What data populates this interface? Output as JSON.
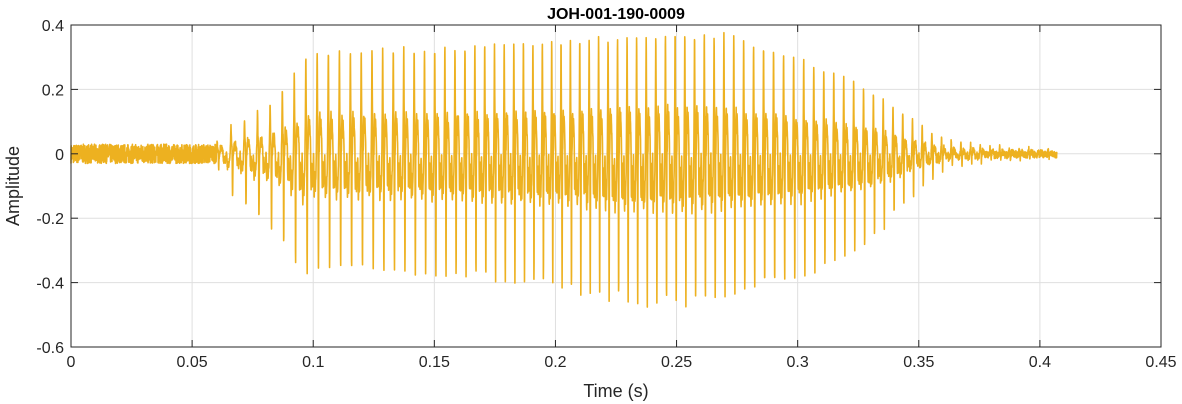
{
  "chart_data": {
    "type": "line",
    "title": "JOH-001-190-0009",
    "xlabel": "Time (s)",
    "ylabel": "Amplitude",
    "xlim": [
      0,
      0.45
    ],
    "ylim": [
      -0.6,
      0.4
    ],
    "xticks": [
      0,
      0.05,
      0.1,
      0.15,
      0.2,
      0.25,
      0.3,
      0.35,
      0.4,
      0.45
    ],
    "xtick_labels": [
      "0",
      "0.05",
      "0.1",
      "0.15",
      "0.2",
      "0.25",
      "0.3",
      "0.35",
      "0.4",
      "0.45"
    ],
    "yticks": [
      0.4,
      0.2,
      0,
      -0.2,
      -0.4,
      -0.6
    ],
    "ytick_labels": [
      "0.4",
      "0.2",
      "0",
      "-0.2",
      "-0.4",
      "-0.6"
    ],
    "grid": true,
    "box": true,
    "series": [
      {
        "color": "#EDB120",
        "duration_s": 0.407,
        "envelope": {
          "t": [
            0,
            0.06,
            0.065,
            0.08,
            0.09,
            0.095,
            0.1,
            0.15,
            0.2,
            0.23,
            0.25,
            0.27,
            0.3,
            0.33,
            0.35,
            0.36,
            0.37,
            0.38,
            0.39,
            0.407
          ],
          "max": [
            0.03,
            0.03,
            0.08,
            0.14,
            0.22,
            0.28,
            0.32,
            0.33,
            0.35,
            0.37,
            0.38,
            0.37,
            0.3,
            0.2,
            0.1,
            0.05,
            0.03,
            0.02,
            0.015,
            0.01
          ],
          "min": [
            -0.03,
            -0.03,
            -0.12,
            -0.22,
            -0.3,
            -0.4,
            -0.36,
            -0.38,
            -0.42,
            -0.47,
            -0.48,
            -0.45,
            -0.4,
            -0.28,
            -0.12,
            -0.05,
            -0.03,
            -0.02,
            -0.015,
            -0.01
          ]
        },
        "f0_hz": {
          "t": [
            0.06,
            0.1,
            0.2,
            0.3,
            0.35
          ],
          "value": [
            170,
            215,
            260,
            240,
            250
          ]
        }
      }
    ]
  },
  "colors": {
    "background": "#FFFFFF",
    "grid": "#DFDFDF",
    "axes": "#262626",
    "signal": "#EDB120"
  }
}
